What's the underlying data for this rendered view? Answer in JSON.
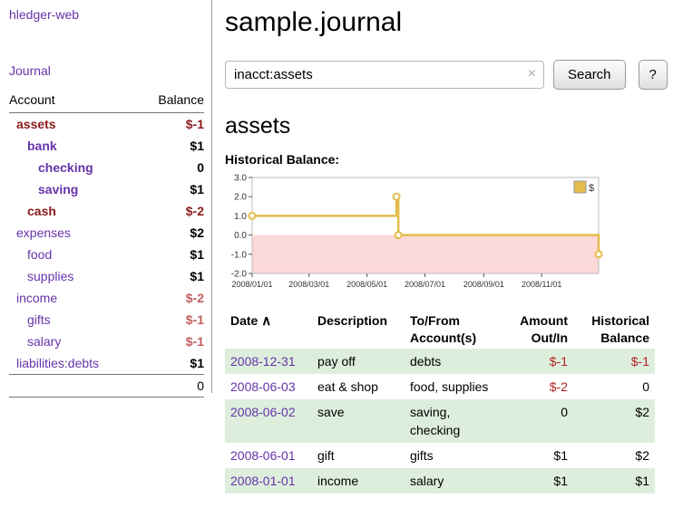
{
  "sidebar": {
    "app_title": "hledger-web",
    "journal_label": "Journal",
    "accounts_table": {
      "headers": {
        "account": "Account",
        "balance": "Balance"
      },
      "rows": [
        {
          "name": "assets",
          "balance": "$-1"
        },
        {
          "name": "bank",
          "balance": "$1"
        },
        {
          "name": "checking",
          "balance": "0"
        },
        {
          "name": "saving",
          "balance": "$1"
        },
        {
          "name": "cash",
          "balance": "$-2"
        },
        {
          "name": "expenses",
          "balance": "$2"
        },
        {
          "name": "food",
          "balance": "$1"
        },
        {
          "name": "supplies",
          "balance": "$1"
        },
        {
          "name": "income",
          "balance": "$-2"
        },
        {
          "name": "gifts",
          "balance": "$-1"
        },
        {
          "name": "salary",
          "balance": "$-1"
        },
        {
          "name": "liabilities:debts",
          "balance": "$1"
        }
      ],
      "total": "0"
    }
  },
  "main": {
    "title": "sample.journal",
    "search": {
      "value": "inacct:assets",
      "clear_icon": "×",
      "button_label": "Search",
      "help_label": "?"
    },
    "account_heading": "assets",
    "chart_label": "Historical Balance:"
  },
  "chart_data": {
    "type": "line",
    "title": "Historical Balance:",
    "series": [
      {
        "name": "$",
        "step": true,
        "points": [
          [
            "2008-01-01",
            1
          ],
          [
            "2008-06-01",
            2
          ],
          [
            "2008-06-03",
            0
          ],
          [
            "2008-12-31",
            -1
          ]
        ]
      }
    ],
    "ylim": [
      -2.0,
      3.0
    ],
    "yticks": [
      3.0,
      2.0,
      1.0,
      0.0,
      -1.0,
      -2.0
    ],
    "xticks": [
      "2008/01/01",
      "2008/03/01",
      "2008/05/01",
      "2008/07/01",
      "2008/09/01",
      "2008/11/01"
    ],
    "xrange": [
      "2008-01-01",
      "2008-12-31"
    ],
    "legend": {
      "label": "$",
      "position": "top-right"
    },
    "grid": false,
    "colors": {
      "line": "#e3bc4b",
      "negative_region": "#fcd9d9",
      "axis": "#555555"
    }
  },
  "register": {
    "sort_icon": "∧",
    "headers": {
      "date": "Date",
      "description": "Description",
      "accounts": "To/From Account(s)",
      "amount": "Amount Out/In",
      "balance": "Historical Balance"
    },
    "rows": [
      {
        "date": "2008-12-31",
        "description": "pay off",
        "accounts": "debts",
        "amount": "$-1",
        "balance": "$-1"
      },
      {
        "date": "2008-06-03",
        "description": "eat & shop",
        "accounts": "food, supplies",
        "amount": "$-2",
        "balance": "0"
      },
      {
        "date": "2008-06-02",
        "description": "save",
        "accounts": "saving, checking",
        "amount": "0",
        "balance": "$2"
      },
      {
        "date": "2008-06-01",
        "description": "gift",
        "accounts": "gifts",
        "amount": "$1",
        "balance": "$2"
      },
      {
        "date": "2008-01-01",
        "description": "income",
        "accounts": "salary",
        "amount": "$1",
        "balance": "$1"
      }
    ]
  }
}
